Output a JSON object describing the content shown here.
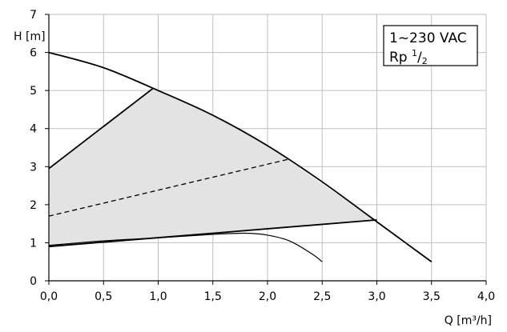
{
  "chart_data": {
    "type": "line",
    "xlabel": "Q [m³/h]",
    "ylabel": "H [m]",
    "xlim": [
      0,
      4
    ],
    "ylim": [
      0,
      7
    ],
    "x_ticks": [
      "0,0",
      "0,5",
      "1,0",
      "1,5",
      "2,0",
      "2,5",
      "3,0",
      "3,5",
      "4,0"
    ],
    "y_ticks": [
      "0",
      "1",
      "2",
      "3",
      "4",
      "5",
      "6",
      "7"
    ],
    "grid": true,
    "legend_box": {
      "line1": "1~230 VAC",
      "line2_prefix": "Rp ",
      "fraction_num": "1",
      "fraction_sep": "/",
      "fraction_den": "2"
    },
    "operating_area": {
      "fill": "#e3e3e3",
      "points": [
        [
          0,
          2.95
        ],
        [
          0.95,
          5.05
        ],
        [
          1.5,
          4.35
        ],
        [
          2.0,
          3.55
        ],
        [
          2.5,
          2.55
        ],
        [
          3.0,
          1.6
        ],
        [
          1.5,
          1.22
        ],
        [
          0.5,
          1.02
        ],
        [
          0,
          0.92
        ]
      ]
    },
    "series": [
      {
        "role": "max-curve",
        "style": "solid",
        "x": [
          0,
          0.5,
          1.0,
          1.5,
          2.0,
          2.5,
          3.0,
          3.5
        ],
        "y": [
          6.0,
          5.6,
          5.0,
          4.35,
          3.55,
          2.6,
          1.55,
          0.5
        ]
      },
      {
        "role": "upper-control-line",
        "style": "solid",
        "x": [
          0,
          0.95
        ],
        "y": [
          2.95,
          5.05
        ]
      },
      {
        "role": "lower-boundary",
        "style": "solid",
        "x": [
          0,
          3.0
        ],
        "y": [
          0.9,
          1.6
        ]
      },
      {
        "role": "min-curve",
        "style": "solid-thin",
        "x": [
          0,
          0.5,
          1.0,
          1.5,
          1.8,
          2.0,
          2.2,
          2.4,
          2.5
        ],
        "y": [
          0.93,
          1.05,
          1.13,
          1.22,
          1.25,
          1.2,
          1.05,
          0.72,
          0.5
        ]
      },
      {
        "role": "dashed-control-line",
        "style": "dashed",
        "x": [
          0,
          2.2
        ],
        "y": [
          1.7,
          3.2
        ]
      }
    ],
    "colors": {
      "axis": "#000000",
      "grid": "#bfbfbf",
      "curve": "#000000"
    }
  }
}
